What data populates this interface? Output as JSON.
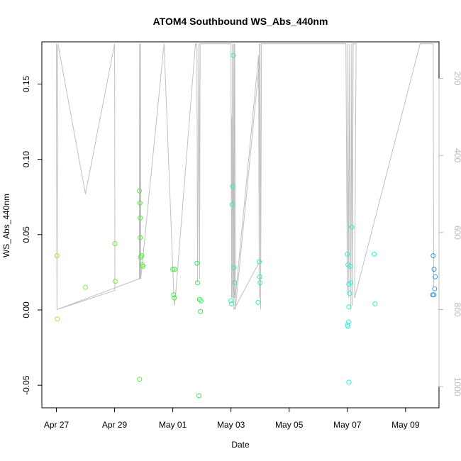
{
  "chart_data": {
    "type": "scatter",
    "title": "ATOM4 Southbound WS_Abs_440nm",
    "xlabel": "Date",
    "ylabel": "WS_Abs_440nm",
    "x_tick_labels": [
      "Apr 27",
      "Apr 29",
      "May 01",
      "May 03",
      "May 05",
      "May 07",
      "May 09"
    ],
    "x_tick_days": [
      0,
      2,
      4,
      6,
      8,
      10,
      12
    ],
    "y_ticks": [
      -0.05,
      0.0,
      0.05,
      0.1,
      0.15
    ],
    "y_tick_labels": [
      "-0.05",
      "0.00",
      "0.05",
      "0.10",
      "0.15"
    ],
    "right_ticks": [
      200,
      400,
      600,
      800,
      1000
    ],
    "right_tick_labels": [
      "200",
      "400",
      "600",
      "800",
      "1000"
    ],
    "xlim_days": [
      -0.5,
      13.15
    ],
    "ylim": [
      -0.065,
      0.178
    ],
    "right_ylim": [
      1055,
      105
    ],
    "colors": {
      "axis": "#000000",
      "right_axis": "#bbbbbb",
      "track": "#c0c0c0"
    },
    "points": [
      {
        "day": 0.02,
        "value": 0.036,
        "color": "#99ee33"
      },
      {
        "day": 0.03,
        "value": -0.006,
        "color": "#99ee33"
      },
      {
        "day": 1.0,
        "value": 0.015,
        "color": "#88ee33"
      },
      {
        "day": 2.01,
        "value": 0.044,
        "color": "#77ee33"
      },
      {
        "day": 2.02,
        "value": 0.019,
        "color": "#77ee33"
      },
      {
        "day": 2.85,
        "value": 0.079,
        "color": "#55ee33"
      },
      {
        "day": 2.87,
        "value": 0.071,
        "color": "#55ee33"
      },
      {
        "day": 2.88,
        "value": 0.061,
        "color": "#55ee33"
      },
      {
        "day": 2.88,
        "value": 0.048,
        "color": "#55ee33"
      },
      {
        "day": 2.89,
        "value": 0.035,
        "color": "#55ee33"
      },
      {
        "day": 2.93,
        "value": 0.036,
        "color": "#55ee33"
      },
      {
        "day": 2.95,
        "value": 0.03,
        "color": "#55ee33"
      },
      {
        "day": 2.97,
        "value": 0.029,
        "color": "#55ee33"
      },
      {
        "day": 2.86,
        "value": -0.046,
        "color": "#55ee33"
      },
      {
        "day": 4.0,
        "value": 0.027,
        "color": "#44ee44"
      },
      {
        "day": 4.03,
        "value": 0.01,
        "color": "#44ee44"
      },
      {
        "day": 4.05,
        "value": 0.008,
        "color": "#44ee44"
      },
      {
        "day": 4.07,
        "value": 0.027,
        "color": "#44ee44"
      },
      {
        "day": 4.83,
        "value": 0.031,
        "color": "#33ee55"
      },
      {
        "day": 4.85,
        "value": 0.018,
        "color": "#33ee55"
      },
      {
        "day": 4.92,
        "value": 0.007,
        "color": "#33ee55"
      },
      {
        "day": 4.97,
        "value": 0.006,
        "color": "#33ee55"
      },
      {
        "day": 4.95,
        "value": -0.001,
        "color": "#33ee55"
      },
      {
        "day": 4.9,
        "value": -0.057,
        "color": "#33ee55"
      },
      {
        "day": 6.0,
        "value": 0.006,
        "color": "#33eeaa"
      },
      {
        "day": 6.02,
        "value": 0.004,
        "color": "#33eeaa"
      },
      {
        "day": 6.04,
        "value": 0.07,
        "color": "#33eeaa"
      },
      {
        "day": 6.06,
        "value": 0.082,
        "color": "#33eeaa"
      },
      {
        "day": 6.08,
        "value": 0.169,
        "color": "#33eeaa"
      },
      {
        "day": 6.1,
        "value": 0.028,
        "color": "#33eeaa"
      },
      {
        "day": 6.12,
        "value": 0.018,
        "color": "#33eeaa"
      },
      {
        "day": 6.93,
        "value": 0.005,
        "color": "#33eebb"
      },
      {
        "day": 6.97,
        "value": 0.032,
        "color": "#33eebb"
      },
      {
        "day": 6.99,
        "value": 0.022,
        "color": "#33eebb"
      },
      {
        "day": 7.0,
        "value": 0.018,
        "color": "#33eebb"
      },
      {
        "day": 10.0,
        "value": 0.037,
        "color": "#33eedd"
      },
      {
        "day": 10.02,
        "value": 0.03,
        "color": "#33eedd"
      },
      {
        "day": 10.05,
        "value": 0.017,
        "color": "#33eedd"
      },
      {
        "day": 10.08,
        "value": 0.011,
        "color": "#33eedd"
      },
      {
        "day": 10.1,
        "value": 0.029,
        "color": "#33eedd"
      },
      {
        "day": 10.12,
        "value": 0.018,
        "color": "#33eedd"
      },
      {
        "day": 10.15,
        "value": 0.055,
        "color": "#33eedd"
      },
      {
        "day": 10.05,
        "value": 0.002,
        "color": "#33eedd"
      },
      {
        "day": 10.0,
        "value": -0.01,
        "color": "#33eedd"
      },
      {
        "day": 10.02,
        "value": -0.011,
        "color": "#33eedd"
      },
      {
        "day": 10.04,
        "value": -0.008,
        "color": "#33eedd"
      },
      {
        "day": 10.05,
        "value": -0.048,
        "color": "#33eedd"
      },
      {
        "day": 10.92,
        "value": 0.037,
        "color": "#33eedd"
      },
      {
        "day": 10.95,
        "value": 0.004,
        "color": "#33eedd"
      },
      {
        "day": 12.95,
        "value": 0.036,
        "color": "#3399dd"
      },
      {
        "day": 12.98,
        "value": 0.027,
        "color": "#3399dd"
      },
      {
        "day": 13.0,
        "value": 0.014,
        "color": "#3399dd"
      },
      {
        "day": 13.02,
        "value": 0.022,
        "color": "#3399dd"
      },
      {
        "day": 12.93,
        "value": 0.01,
        "color": "#3399dd"
      },
      {
        "day": 12.97,
        "value": 0.01,
        "color": "#3399dd"
      }
    ],
    "track": [
      {
        "day": 0.0,
        "alt": 110
      },
      {
        "day": 0.02,
        "alt": 800
      },
      {
        "day": 0.05,
        "alt": 110
      },
      {
        "day": 1.0,
        "alt": 500
      },
      {
        "day": 2.0,
        "alt": 110
      },
      {
        "day": 2.01,
        "alt": 750
      },
      {
        "day": 2.02,
        "alt": 750
      },
      {
        "day": 0.02,
        "alt": 800
      },
      {
        "day": 2.85,
        "alt": 720
      },
      {
        "day": 2.86,
        "alt": 110
      },
      {
        "day": 2.87,
        "alt": 720
      },
      {
        "day": 2.88,
        "alt": 720
      },
      {
        "day": 2.89,
        "alt": 110
      },
      {
        "day": 2.9,
        "alt": 720
      },
      {
        "day": 3.7,
        "alt": 110
      },
      {
        "day": 4.05,
        "alt": 790
      },
      {
        "day": 4.1,
        "alt": 760
      },
      {
        "day": 4.78,
        "alt": 110
      },
      {
        "day": 4.83,
        "alt": 110
      },
      {
        "day": 4.85,
        "alt": 730
      },
      {
        "day": 4.9,
        "alt": 110
      },
      {
        "day": 4.92,
        "alt": 720
      },
      {
        "day": 4.94,
        "alt": 110
      },
      {
        "day": 6.0,
        "alt": 110
      },
      {
        "day": 6.02,
        "alt": 770
      },
      {
        "day": 6.03,
        "alt": 300
      },
      {
        "day": 6.04,
        "alt": 770
      },
      {
        "day": 6.05,
        "alt": 110
      },
      {
        "day": 6.08,
        "alt": 770
      },
      {
        "day": 6.1,
        "alt": 110
      },
      {
        "day": 6.12,
        "alt": 770
      },
      {
        "day": 6.13,
        "alt": 110
      },
      {
        "day": 6.15,
        "alt": 770
      },
      {
        "day": 6.95,
        "alt": 140
      },
      {
        "day": 6.97,
        "alt": 770
      },
      {
        "day": 6.98,
        "alt": 110
      },
      {
        "day": 7.0,
        "alt": 110
      },
      {
        "day": 7.02,
        "alt": 670
      },
      {
        "day": 6.1,
        "alt": 800
      },
      {
        "day": 6.12,
        "alt": 110
      },
      {
        "day": 6.15,
        "alt": 800
      },
      {
        "day": 7.0,
        "alt": 140
      },
      {
        "day": 7.02,
        "alt": 800
      },
      {
        "day": 7.05,
        "alt": 110
      },
      {
        "day": 9.95,
        "alt": 110
      },
      {
        "day": 10.0,
        "alt": 760
      },
      {
        "day": 10.02,
        "alt": 110
      },
      {
        "day": 10.05,
        "alt": 770
      },
      {
        "day": 10.08,
        "alt": 110
      },
      {
        "day": 10.12,
        "alt": 800
      },
      {
        "day": 10.15,
        "alt": 110
      },
      {
        "day": 10.17,
        "alt": 790
      },
      {
        "day": 10.2,
        "alt": 110
      },
      {
        "day": 10.3,
        "alt": 110
      },
      {
        "day": 10.25,
        "alt": 770
      },
      {
        "day": 12.5,
        "alt": 110
      },
      {
        "day": 12.95,
        "alt": 110
      },
      {
        "day": 12.97,
        "alt": 740
      }
    ]
  }
}
